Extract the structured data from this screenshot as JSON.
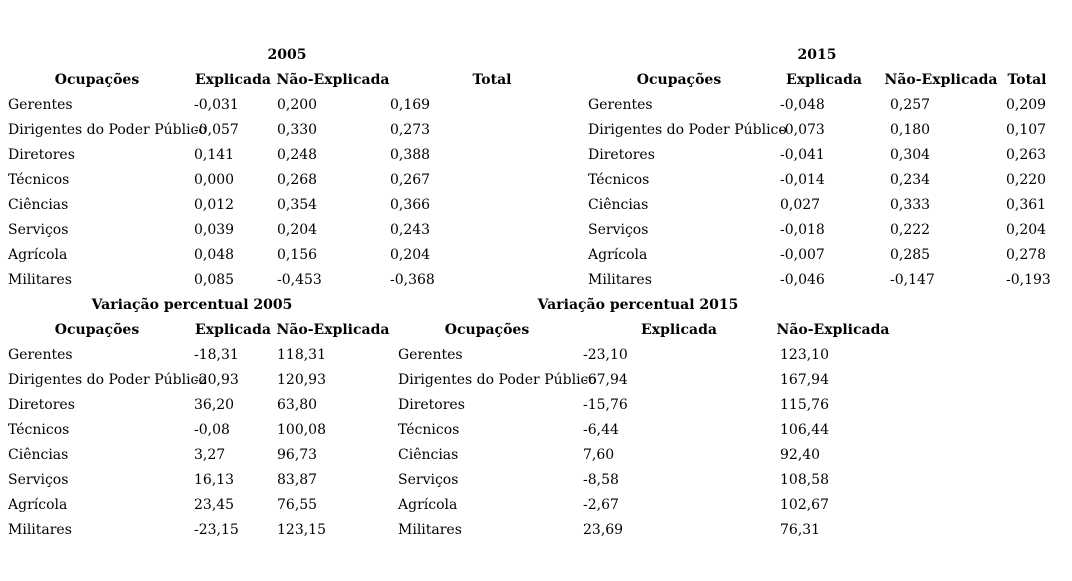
{
  "tables": [
    {
      "id": "decomposicao-2005",
      "title": "2005",
      "columns": [
        "Ocupações",
        "Explicada",
        "Não-Explicada",
        "Total"
      ],
      "rows": [
        {
          "label": "Gerentes",
          "values": [
            "-0,031",
            "0,200",
            "0,169"
          ]
        },
        {
          "label": "Dirigentes do Poder Público",
          "values": [
            "-0,057",
            "0,330",
            "0,273"
          ]
        },
        {
          "label": "Diretores",
          "values": [
            "0,141",
            "0,248",
            "0,388"
          ]
        },
        {
          "label": "Técnicos",
          "values": [
            "0,000",
            "0,268",
            "0,267"
          ]
        },
        {
          "label": "Ciências",
          "values": [
            "0,012",
            "0,354",
            "0,366"
          ]
        },
        {
          "label": "Serviços",
          "values": [
            "0,039",
            "0,204",
            "0,243"
          ]
        },
        {
          "label": "Agrícola",
          "values": [
            "0,048",
            "0,156",
            "0,204"
          ]
        },
        {
          "label": "Militares",
          "values": [
            "0,085",
            "-0,453",
            "-0,368"
          ]
        }
      ]
    },
    {
      "id": "decomposicao-2015",
      "title": "2015",
      "columns": [
        "Ocupações",
        "Explicada",
        "Não-Explicada",
        "Total"
      ],
      "rows": [
        {
          "label": "Gerentes",
          "values": [
            "-0,048",
            "0,257",
            "0,209"
          ]
        },
        {
          "label": "Dirigentes do Poder Público",
          "values": [
            "-0,073",
            "0,180",
            "0,107"
          ]
        },
        {
          "label": "Diretores",
          "values": [
            "-0,041",
            "0,304",
            "0,263"
          ]
        },
        {
          "label": "Técnicos",
          "values": [
            "-0,014",
            "0,234",
            "0,220"
          ]
        },
        {
          "label": "Ciências",
          "values": [
            "0,027",
            "0,333",
            "0,361"
          ]
        },
        {
          "label": "Serviços",
          "values": [
            "-0,018",
            "0,222",
            "0,204"
          ]
        },
        {
          "label": "Agrícola",
          "values": [
            "-0,007",
            "0,285",
            "0,278"
          ]
        },
        {
          "label": "Militares",
          "values": [
            "-0,046",
            "-0,147",
            "-0,193"
          ]
        }
      ]
    },
    {
      "id": "variacao-percentual-2005",
      "title": "Variação percentual 2005",
      "columns": [
        "Ocupações",
        "Explicada",
        "Não-Explicada"
      ],
      "rows": [
        {
          "label": "Gerentes",
          "values": [
            "-18,31",
            "118,31"
          ]
        },
        {
          "label": "Dirigentes do Poder Público",
          "values": [
            "-20,93",
            "120,93"
          ]
        },
        {
          "label": "Diretores",
          "values": [
            "36,20",
            "63,80"
          ]
        },
        {
          "label": "Técnicos",
          "values": [
            "-0,08",
            "100,08"
          ]
        },
        {
          "label": "Ciências",
          "values": [
            "3,27",
            "96,73"
          ]
        },
        {
          "label": "Serviços",
          "values": [
            "16,13",
            "83,87"
          ]
        },
        {
          "label": "Agrícola",
          "values": [
            "23,45",
            "76,55"
          ]
        },
        {
          "label": "Militares",
          "values": [
            "-23,15",
            "123,15"
          ]
        }
      ]
    },
    {
      "id": "variacao-percentual-2015",
      "title": "Variação percentual 2015",
      "columns": [
        "Ocupações",
        "Explicada",
        "Não-Explicada"
      ],
      "rows": [
        {
          "label": "Gerentes",
          "values": [
            "-23,10",
            "123,10"
          ]
        },
        {
          "label": "Dirigentes do Poder Público",
          "values": [
            "-67,94",
            "167,94"
          ]
        },
        {
          "label": "Diretores",
          "values": [
            "-15,76",
            "115,76"
          ]
        },
        {
          "label": "Técnicos",
          "values": [
            "-6,44",
            "106,44"
          ]
        },
        {
          "label": "Ciências",
          "values": [
            "7,60",
            "92,40"
          ]
        },
        {
          "label": "Serviços",
          "values": [
            "-8,58",
            "108,58"
          ]
        },
        {
          "label": "Agrícola",
          "values": [
            "-2,67",
            "102,67"
          ]
        },
        {
          "label": "Militares",
          "values": [
            "23,69",
            "76,31"
          ]
        }
      ]
    }
  ]
}
